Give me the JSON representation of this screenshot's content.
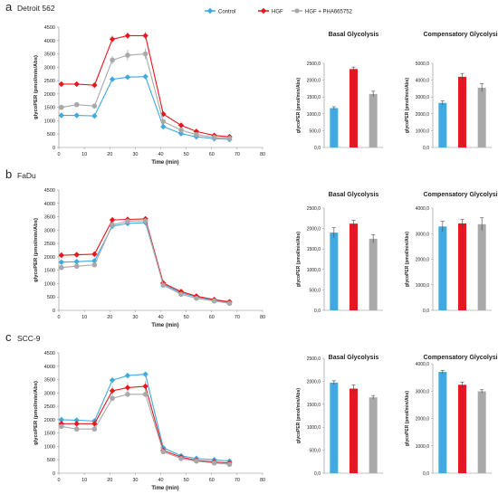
{
  "legend": [
    {
      "name": "Control",
      "color": "#3fa9e0"
    },
    {
      "name": "HGF",
      "color": "#e8161d"
    },
    {
      "name": "HGF + PHA665752",
      "color": "#a9a9a9"
    }
  ],
  "panels": [
    {
      "letter": "a",
      "cell_line": "Detroit 562",
      "line_chart": {
        "ylabel": "glycoPER (pmol/min/Abs)",
        "xlabel": "Time (min)",
        "xticks": [
          0,
          10,
          20,
          30,
          40,
          50,
          60,
          70,
          80
        ],
        "yticks": [
          0,
          500,
          1000,
          1500,
          2000,
          2500,
          3000,
          3500,
          4000,
          4500
        ],
        "ylim": [
          0,
          4500
        ]
      },
      "basal": {
        "title": "Basal Glycolysis",
        "ylabel": "glycoPER (pmol/min/Abs)",
        "yticks": [
          "0,0",
          "500,0",
          "1000,0",
          "1500,0",
          "2000,0",
          "2500,0"
        ],
        "ymax": 2500
      },
      "comp": {
        "title": "Compensatory Glycolysis",
        "ylabel": "glycoPER (pmol/min/Abs)",
        "yticks": [
          "0,0",
          "1000,0",
          "2000,0",
          "3000,0",
          "4000,0",
          "5000,0"
        ],
        "ymax": 5000
      }
    },
    {
      "letter": "b",
      "cell_line": "FaDu",
      "line_chart": {
        "ylabel": "glycoPER (pmol/min/Abs)",
        "xlabel": "Time (min)",
        "xticks": [
          0,
          10,
          20,
          30,
          40,
          50,
          60,
          70,
          80
        ],
        "yticks": [
          0,
          500,
          1000,
          1500,
          2000,
          2500,
          3000,
          3500,
          4000,
          4500
        ],
        "ylim": [
          0,
          4500
        ]
      },
      "basal": {
        "title": "Basal Glycolysis",
        "ylabel": "glycoPER (pmol/min/Abs)",
        "yticks": [
          "0,0",
          "500,0",
          "1000,0",
          "1500,0",
          "2000,0",
          "2500,0"
        ],
        "ymax": 2500
      },
      "comp": {
        "title": "Compensatory Glycolysis",
        "ylabel": "glycoPER (pmol/min/Abs)",
        "yticks": [
          "0,0",
          "1000,0",
          "2000,0",
          "3000,0",
          "4000,0"
        ],
        "ymax": 4000
      }
    },
    {
      "letter": "c",
      "cell_line": "SCC-9",
      "line_chart": {
        "ylabel": "glycoPER (pmol/min/Abs)",
        "xlabel": "Time (min)",
        "xticks": [
          0,
          10,
          20,
          30,
          40,
          50,
          60,
          70,
          80
        ],
        "yticks": [
          0,
          500,
          1000,
          1500,
          2000,
          2500,
          3000,
          3500,
          4000,
          4500
        ],
        "ylim": [
          0,
          4500
        ]
      },
      "basal": {
        "title": "Basal Glycolysis",
        "ylabel": "glycoPER (pmol/min/Abs)",
        "yticks": [
          "0,0",
          "500,0",
          "1000,0",
          "1500,0",
          "2000,0",
          "2500,0"
        ],
        "ymax": 2500
      },
      "comp": {
        "title": "Compensatory Glycolysis",
        "ylabel": "glycoPER (pmol/min/Abs)",
        "yticks": [
          "0,0",
          "1000,0",
          "2000,0",
          "3000,0",
          "4000,0"
        ],
        "ymax": 4000
      }
    }
  ],
  "chart_data": [
    {
      "type": "line",
      "panel": "a",
      "x": [
        1,
        7,
        14,
        21,
        27,
        34,
        41,
        48,
        54,
        61,
        67
      ],
      "series": [
        {
          "name": "Control",
          "values": [
            1200,
            1200,
            1180,
            2550,
            2630,
            2650,
            780,
            520,
            400,
            330,
            300
          ],
          "errors": [
            80,
            60,
            60,
            70,
            70,
            70,
            70,
            50,
            40,
            30,
            30
          ]
        },
        {
          "name": "HGF",
          "values": [
            2370,
            2370,
            2330,
            4050,
            4180,
            4180,
            1250,
            830,
            600,
            450,
            400
          ],
          "errors": [
            60,
            60,
            60,
            150,
            130,
            150,
            80,
            60,
            50,
            40,
            40
          ]
        },
        {
          "name": "HGF + PHA665752",
          "values": [
            1500,
            1600,
            1550,
            3270,
            3450,
            3500,
            970,
            650,
            480,
            380,
            340
          ],
          "errors": [
            60,
            60,
            60,
            150,
            200,
            200,
            60,
            50,
            40,
            30,
            30
          ]
        }
      ],
      "xlim": [
        0,
        80
      ],
      "ylim": [
        0,
        4500
      ]
    },
    {
      "type": "bar",
      "panel": "a",
      "title": "Basal Glycolysis",
      "categories": [
        "Control",
        "HGF",
        "HGF + PHA665752"
      ],
      "values": [
        1170,
        2330,
        1590
      ],
      "errors": [
        40,
        60,
        80
      ],
      "ylim": [
        0,
        2500
      ]
    },
    {
      "type": "bar",
      "panel": "a",
      "title": "Compensatory Glycolysis",
      "categories": [
        "Control",
        "HGF",
        "HGF + PHA665752"
      ],
      "values": [
        2650,
        4200,
        3550
      ],
      "errors": [
        120,
        200,
        250
      ],
      "ylim": [
        0,
        5000
      ]
    },
    {
      "type": "line",
      "panel": "b",
      "x": [
        1,
        7,
        14,
        21,
        27,
        34,
        41,
        48,
        54,
        61,
        67
      ],
      "series": [
        {
          "name": "Control",
          "values": [
            1800,
            1820,
            1850,
            3150,
            3250,
            3280,
            980,
            650,
            500,
            380,
            300
          ],
          "errors": [
            80,
            80,
            80,
            100,
            100,
            100,
            60,
            50,
            40,
            30,
            30
          ]
        },
        {
          "name": "HGF",
          "values": [
            2060,
            2080,
            2100,
            3380,
            3400,
            3420,
            1020,
            700,
            530,
            400,
            320
          ],
          "errors": [
            60,
            60,
            60,
            60,
            60,
            60,
            50,
            40,
            40,
            30,
            30
          ]
        },
        {
          "name": "HGF + PHA665752",
          "values": [
            1600,
            1650,
            1700,
            3200,
            3330,
            3350,
            940,
            600,
            450,
            350,
            260
          ],
          "errors": [
            60,
            60,
            60,
            100,
            100,
            100,
            60,
            40,
            30,
            30,
            30
          ]
        }
      ],
      "xlim": [
        0,
        80
      ],
      "ylim": [
        0,
        4500
      ]
    },
    {
      "type": "bar",
      "panel": "b",
      "title": "Basal Glycolysis",
      "categories": [
        "Control",
        "HGF",
        "HGF + PHA665752"
      ],
      "values": [
        1900,
        2120,
        1750
      ],
      "errors": [
        120,
        80,
        100
      ],
      "ylim": [
        0,
        2500
      ]
    },
    {
      "type": "bar",
      "panel": "b",
      "title": "Compensatory Glycolysis",
      "categories": [
        "Control",
        "HGF",
        "HGF + PHA665752"
      ],
      "values": [
        3280,
        3400,
        3370
      ],
      "errors": [
        200,
        150,
        250
      ],
      "ylim": [
        0,
        4000
      ]
    },
    {
      "type": "line",
      "panel": "c",
      "x": [
        1,
        7,
        14,
        21,
        27,
        34,
        41,
        48,
        54,
        61,
        67
      ],
      "series": [
        {
          "name": "Control",
          "values": [
            2000,
            1980,
            1950,
            3480,
            3650,
            3700,
            950,
            650,
            550,
            500,
            450
          ],
          "errors": [
            60,
            60,
            60,
            80,
            80,
            80,
            60,
            50,
            40,
            40,
            40
          ]
        },
        {
          "name": "HGF",
          "values": [
            1850,
            1850,
            1850,
            3080,
            3200,
            3250,
            850,
            600,
            480,
            420,
            380
          ],
          "errors": [
            150,
            150,
            150,
            180,
            200,
            200,
            100,
            60,
            50,
            40,
            40
          ]
        },
        {
          "name": "HGF + PHA665752",
          "values": [
            1750,
            1650,
            1650,
            2800,
            2950,
            2950,
            800,
            550,
            450,
            380,
            330
          ],
          "errors": [
            60,
            60,
            60,
            100,
            100,
            100,
            60,
            40,
            40,
            30,
            30
          ]
        }
      ],
      "xlim": [
        0,
        80
      ],
      "ylim": [
        0,
        4500
      ]
    },
    {
      "type": "bar",
      "panel": "c",
      "title": "Basal Glycolysis",
      "categories": [
        "Control",
        "HGF",
        "HGF + PHA665752"
      ],
      "values": [
        1970,
        1840,
        1650
      ],
      "errors": [
        40,
        80,
        40
      ],
      "ylim": [
        0,
        2500
      ]
    },
    {
      "type": "bar",
      "panel": "c",
      "title": "Compensatory Glycolysis",
      "categories": [
        "Control",
        "HGF",
        "HGF + PHA665752"
      ],
      "values": [
        3700,
        3230,
        2990
      ],
      "errors": [
        60,
        100,
        60
      ],
      "ylim": [
        0,
        4000
      ]
    }
  ]
}
